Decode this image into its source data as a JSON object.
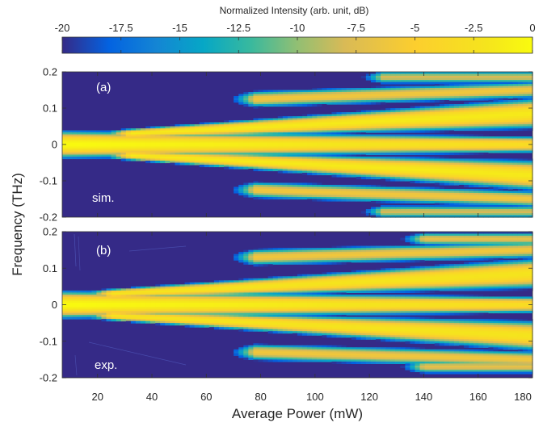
{
  "chart_data": {
    "type": "heatmap",
    "colormap": "parula",
    "colorbar": {
      "title": "Normalized Intensity (arb. unit, dB)",
      "range": [
        -20,
        0
      ],
      "ticks": [
        -20,
        -17.5,
        -15,
        -12.5,
        -10,
        -7.5,
        -5,
        -2.5,
        0
      ],
      "tick_labels": [
        "-20",
        "-17.5",
        "-15",
        "-12.5",
        "-10",
        "-7.5",
        "-5",
        "-2.5",
        "0"
      ],
      "placement": "top"
    },
    "xlabel": "Average Power (mW)",
    "ylabel": "Frequency (THz)",
    "xlim": [
      7,
      180
    ],
    "x_ticks": [
      20,
      40,
      60,
      80,
      100,
      120,
      140,
      160,
      180
    ],
    "x_tick_labels": [
      "20",
      "40",
      "60",
      "80",
      "100",
      "120",
      "140",
      "160",
      "180"
    ],
    "ylim": [
      -0.2,
      0.2
    ],
    "y_ticks": [
      0.2,
      0.1,
      0,
      -0.1,
      -0.2
    ],
    "y_tick_labels": [
      "0.2",
      "0.1",
      "0",
      "-0.1",
      "-0.2"
    ],
    "panels": [
      {
        "label": "(a)",
        "annotation": "sim.",
        "features": [
          {
            "kind": "central-band",
            "x_range": [
              7,
              180
            ],
            "center": 0,
            "half_width": [
              0.022,
              0.014
            ],
            "peak_db": [
              0,
              -3
            ]
          },
          {
            "kind": "side-band",
            "x_range": [
              32,
              180
            ],
            "center": [
              0.03,
              0.085
            ],
            "half_width": [
              0.008,
              0.025
            ],
            "peak_db": -1.5
          },
          {
            "kind": "side-band",
            "x_range": [
              32,
              180
            ],
            "center": [
              -0.03,
              -0.085
            ],
            "half_width": [
              0.008,
              0.025
            ],
            "peak_db": -1.5
          },
          {
            "kind": "lobe",
            "x_range": [
              78,
              180
            ],
            "center": [
              0.125,
              0.15
            ],
            "half_width": 0.015,
            "peak_db": -6
          },
          {
            "kind": "lobe",
            "x_range": [
              78,
              180
            ],
            "center": [
              -0.125,
              -0.15
            ],
            "half_width": 0.015,
            "peak_db": -6
          },
          {
            "kind": "lobe",
            "x_range": [
              125,
              180
            ],
            "center": 0.185,
            "half_width": 0.012,
            "peak_db": -8
          },
          {
            "kind": "lobe",
            "x_range": [
              125,
              180
            ],
            "center": -0.185,
            "half_width": 0.012,
            "peak_db": -8
          }
        ]
      },
      {
        "label": "(b)",
        "annotation": "exp.",
        "features": [
          {
            "kind": "central-band",
            "x_range": [
              7,
              180
            ],
            "center": 0,
            "half_width": [
              0.022,
              0.014
            ],
            "peak_db": [
              0,
              -3
            ]
          },
          {
            "kind": "side-band",
            "x_range": [
              25,
              180
            ],
            "center": [
              0.03,
              0.085
            ],
            "half_width": [
              0.008,
              0.025
            ],
            "peak_db": -2
          },
          {
            "kind": "side-band",
            "x_range": [
              25,
              180
            ],
            "center": [
              -0.03,
              -0.085
            ],
            "half_width": [
              0.008,
              0.025
            ],
            "peak_db": -2
          },
          {
            "kind": "lobe",
            "x_range": [
              78,
              180
            ],
            "center": [
              0.13,
              0.15
            ],
            "half_width": 0.015,
            "peak_db": -6
          },
          {
            "kind": "lobe",
            "x_range": [
              78,
              180
            ],
            "center": [
              -0.13,
              -0.15
            ],
            "half_width": 0.015,
            "peak_db": -6
          },
          {
            "kind": "lobe",
            "x_range": [
              140,
              180
            ],
            "center": 0.18,
            "half_width": 0.012,
            "peak_db": -7
          },
          {
            "kind": "lobe",
            "x_range": [
              140,
              180
            ],
            "center": -0.17,
            "half_width": 0.012,
            "peak_db": -7
          }
        ]
      }
    ]
  }
}
